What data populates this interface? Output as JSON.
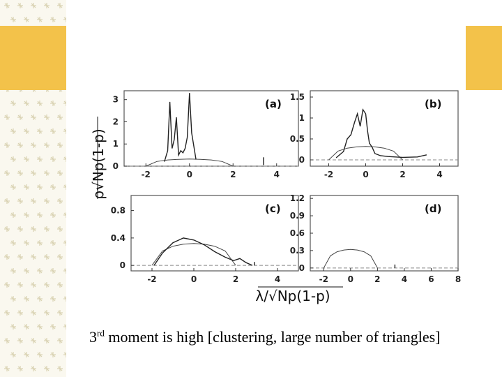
{
  "caption": {
    "superscript_before": "3",
    "sup": "rd",
    "text": " moment is high [clustering, large number of triangles]"
  },
  "colors": {
    "accent_gold": "#f3c24a",
    "strip": "#faf8ef",
    "curve": "#222222",
    "semicircle": "#444444"
  },
  "figure": {
    "ylabel": "ρ√Np(1-p)",
    "xlabel": "λ/√Np(1-p)"
  },
  "chart_data": [
    {
      "type": "line",
      "panel": "(a)",
      "xlim": [
        -3,
        5
      ],
      "ylim": [
        0,
        3.4
      ],
      "xticks": [
        "-2",
        "0",
        "2",
        "4"
      ],
      "yticks": [
        "0",
        "1",
        "2",
        "3"
      ],
      "series": [
        {
          "x": [
            -2,
            -1.5,
            -1,
            -0.5,
            0,
            0.5,
            1,
            1.5,
            2
          ],
          "y": [
            0,
            0.21,
            0.28,
            0.31,
            0.32,
            0.31,
            0.28,
            0.21,
            0
          ]
        },
        {
          "x": [
            -1.15,
            -1.0,
            -0.9,
            -0.8,
            -0.7,
            -0.6,
            -0.5,
            -0.4,
            -0.3,
            -0.2,
            -0.1,
            0.0,
            0.1,
            0.2,
            0.3
          ],
          "y": [
            0.2,
            0.7,
            2.9,
            0.8,
            1.2,
            2.2,
            0.5,
            0.7,
            0.6,
            0.8,
            1.3,
            3.3,
            1.5,
            0.9,
            0.3
          ]
        },
        {
          "x": [
            3.4,
            3.4
          ],
          "y": [
            0.05,
            0.4
          ]
        }
      ]
    },
    {
      "type": "line",
      "panel": "(b)",
      "xlim": [
        -3,
        5
      ],
      "ylim": [
        -0.15,
        1.65
      ],
      "xticks": [
        "-2",
        "0",
        "2",
        "4"
      ],
      "yticks": [
        "0",
        "0.5",
        "1",
        "1.5"
      ],
      "series": [
        {
          "x": [
            -2,
            -1.5,
            -1,
            -0.5,
            0,
            0.5,
            1,
            1.5,
            2
          ],
          "y": [
            0,
            0.21,
            0.28,
            0.31,
            0.32,
            0.31,
            0.28,
            0.21,
            0
          ]
        },
        {
          "x": [
            -1.6,
            -1.2,
            -1.0,
            -0.8,
            -0.6,
            -0.45,
            -0.3,
            -0.15,
            0.0,
            0.1,
            0.2,
            0.35,
            0.5,
            0.8,
            1.2,
            2.0,
            2.8,
            3.3
          ],
          "y": [
            0.05,
            0.2,
            0.5,
            0.6,
            0.9,
            1.1,
            0.8,
            1.2,
            1.1,
            0.7,
            0.4,
            0.3,
            0.15,
            0.1,
            0.08,
            0.06,
            0.07,
            0.12
          ]
        }
      ]
    },
    {
      "type": "line",
      "panel": "(c)",
      "xlim": [
        -3,
        5
      ],
      "ylim": [
        -0.08,
        1.02
      ],
      "xticks": [
        "-2",
        "0",
        "2",
        "4"
      ],
      "yticks": [
        "0",
        "0.4",
        "0.8"
      ],
      "series": [
        {
          "x": [
            -2,
            -1.5,
            -1,
            -0.5,
            0,
            0.5,
            1,
            1.5,
            2
          ],
          "y": [
            0,
            0.21,
            0.28,
            0.31,
            0.32,
            0.31,
            0.28,
            0.21,
            0
          ]
        },
        {
          "x": [
            -1.9,
            -1.5,
            -1.0,
            -0.5,
            0.0,
            0.5,
            1.0,
            1.5,
            1.9,
            2.2,
            2.5,
            2.8
          ],
          "y": [
            0.0,
            0.18,
            0.33,
            0.4,
            0.37,
            0.3,
            0.2,
            0.12,
            0.07,
            0.1,
            0.04,
            0.0
          ]
        },
        {
          "x": [
            2.9,
            2.9
          ],
          "y": [
            0.0,
            0.05
          ]
        }
      ]
    },
    {
      "type": "line",
      "panel": "(d)",
      "xlim": [
        -3,
        8
      ],
      "ylim": [
        -0.05,
        1.25
      ],
      "xticks": [
        "-2",
        "0",
        "2",
        "4",
        "6",
        "8"
      ],
      "yticks": [
        "0",
        "0.3",
        "0.6",
        "0.9",
        "1.2"
      ],
      "series": [
        {
          "x": [
            -2,
            -1.5,
            -1,
            -0.5,
            0,
            0.5,
            1,
            1.5,
            2
          ],
          "y": [
            0,
            0.21,
            0.28,
            0.31,
            0.32,
            0.31,
            0.28,
            0.21,
            0
          ]
        },
        {
          "x": [
            3.3,
            3.3
          ],
          "y": [
            0.0,
            0.06
          ]
        }
      ]
    }
  ]
}
